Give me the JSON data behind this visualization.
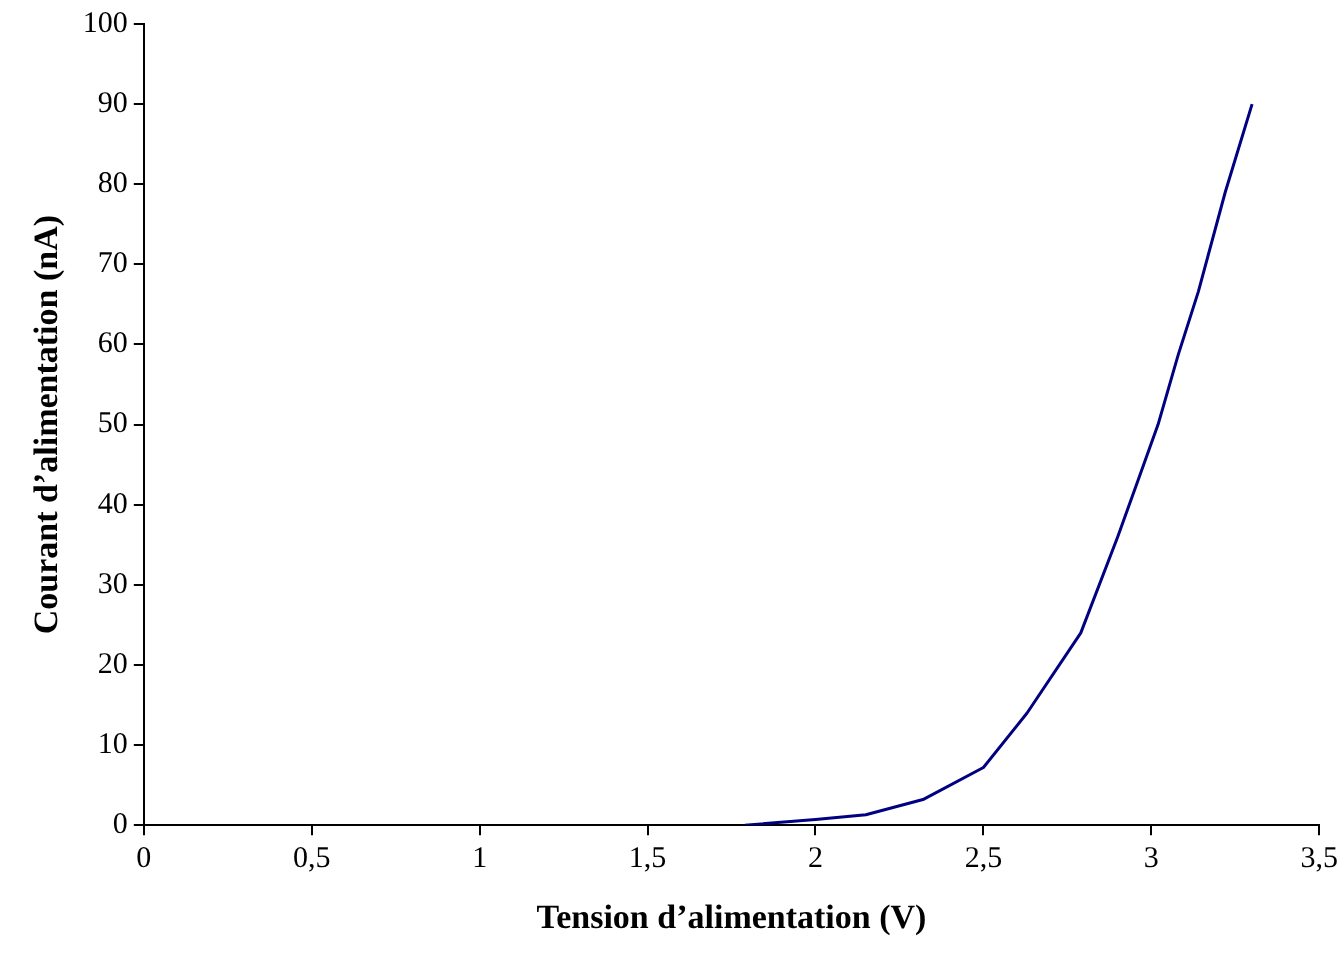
{
  "chart_data": {
    "type": "line",
    "xlabel": "Tension d’alimentation (V)",
    "ylabel": "Courant d’alimentation (nA)",
    "series": [
      {
        "color": "#000080",
        "x": [
          1.79,
          2.0,
          2.15,
          2.32,
          2.5,
          2.63,
          2.79,
          2.9,
          2.96,
          3.02,
          3.08,
          3.14,
          3.22,
          3.3
        ],
        "values": [
          0,
          0.7,
          1.3,
          3.2,
          7.2,
          14,
          24,
          36,
          43,
          50,
          58.7,
          66.6,
          79,
          90
        ]
      }
    ],
    "xlim": [
      0,
      3.5
    ],
    "xticks": [
      0,
      {
        "value": 0.5,
        "label": "0,5"
      },
      1,
      {
        "value": 1.5,
        "label": "1,5"
      },
      2,
      {
        "value": 2.5,
        "label": "2,5"
      },
      3,
      {
        "value": 3.5,
        "label": "3,5"
      }
    ],
    "ylim": [
      0,
      100
    ],
    "yticks": [
      0,
      10,
      20,
      30,
      40,
      50,
      60,
      70,
      80,
      90,
      100
    ],
    "grid": false,
    "legend": false,
    "marker": "none",
    "line_style": "solid"
  }
}
